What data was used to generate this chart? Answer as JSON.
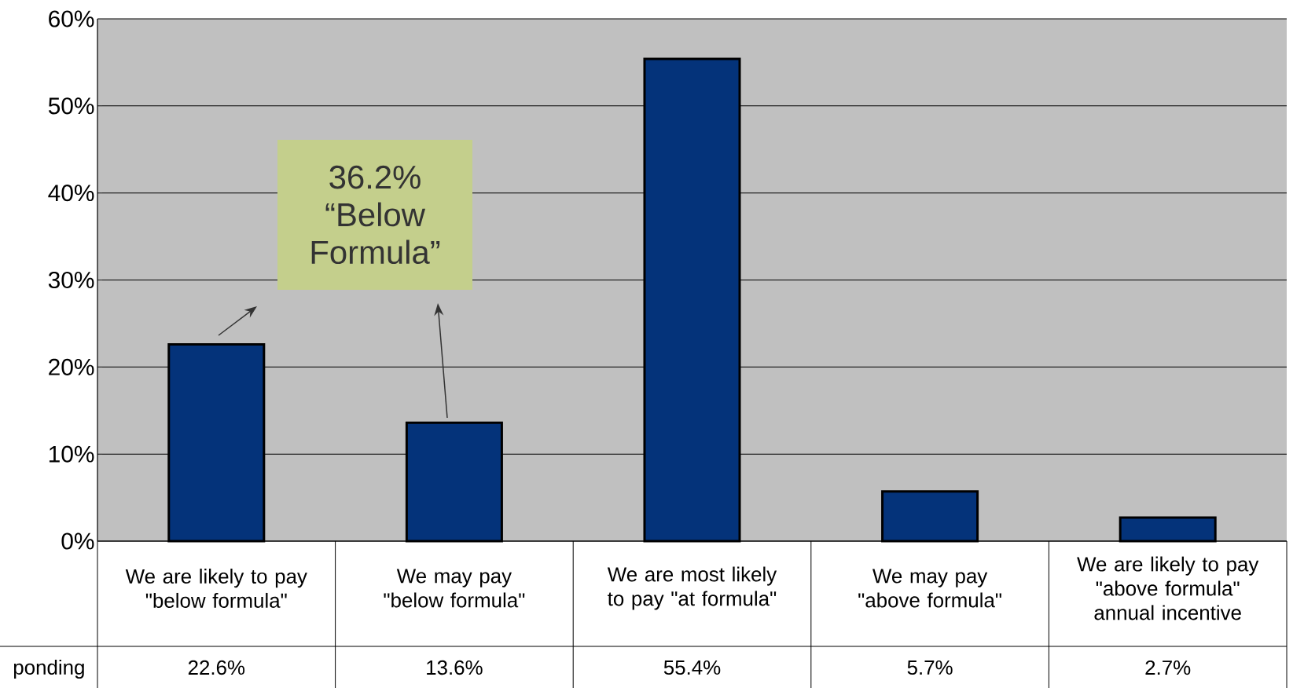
{
  "chart_data": {
    "type": "bar",
    "categories": [
      "We are likely to pay \"below formula\"",
      "We may pay \"below formula\"",
      "We are most likely to pay \"at formula\"",
      "We may pay \"above formula\"",
      "We are likely to pay \"above formula\" annual incentive"
    ],
    "values": [
      22.6,
      13.6,
      55.4,
      5.7,
      2.7
    ],
    "value_labels": [
      "22.6%",
      "13.6%",
      "55.4%",
      "5.7%",
      "2.7%"
    ],
    "color": "#04337a",
    "ylim": [
      0,
      60
    ],
    "yticks": [
      {
        "value": 0,
        "label": "0%"
      },
      {
        "value": 10,
        "label": "10%"
      },
      {
        "value": 20,
        "label": "20%"
      },
      {
        "value": 30,
        "label": "30%"
      },
      {
        "value": 40,
        "label": "40%"
      },
      {
        "value": 50,
        "label": "50%"
      },
      {
        "value": 60,
        "label": "60%"
      }
    ],
    "grid": "y",
    "annotations": [
      "36.2% “Below Formula”",
      "ponding"
    ]
  }
}
